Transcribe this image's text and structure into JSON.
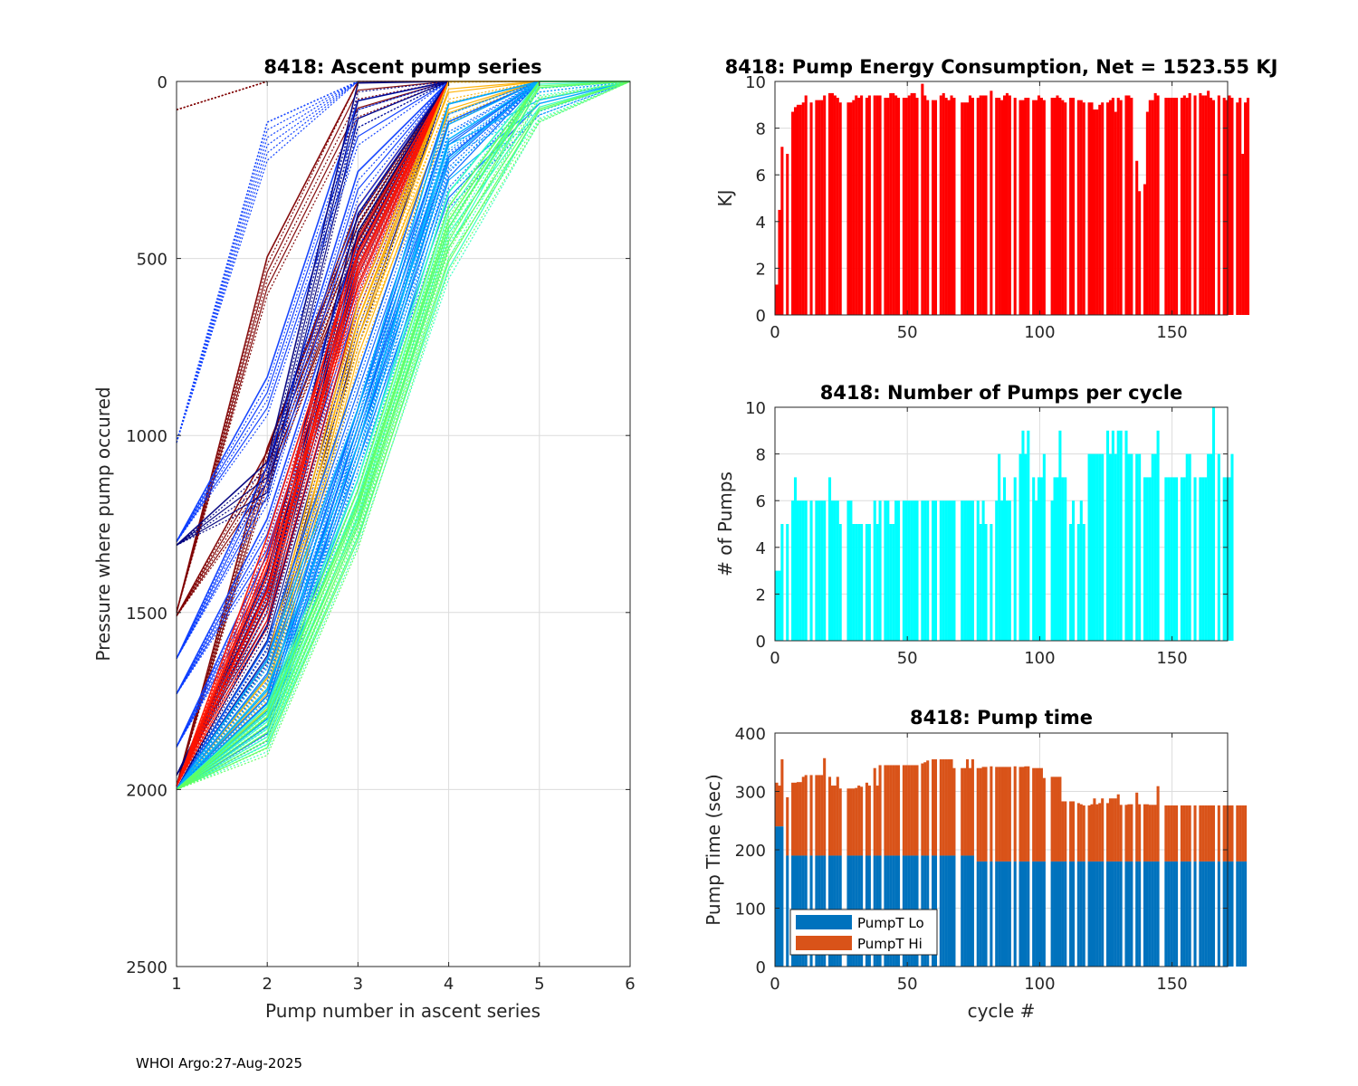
{
  "footer": "WHOI Argo:27-Aug-2025",
  "chart_data": [
    {
      "id": "ascent",
      "type": "line",
      "title": "8418: Ascent pump series",
      "xlabel": "Pump number in ascent series",
      "ylabel": "Pressure where pump occured",
      "xlim": [
        1,
        6
      ],
      "ylim": [
        0,
        2500
      ],
      "y_reversed": true,
      "grid": true,
      "xticks": [
        "1",
        "2",
        "3",
        "4",
        "5",
        "6"
      ],
      "yticks": [
        "0",
        "500",
        "1000",
        "1500",
        "2000",
        "2500"
      ],
      "colormap": "jet (by cycle number)",
      "series_groups": [
        {
          "name": "early-cycles-dark-red",
          "color": "#800000",
          "lines": [
            [
              80,
              0
            ],
            [
              1510,
              1110,
              430,
              0
            ],
            [
              1500,
              560,
              50,
              0
            ],
            [
              1990,
              1100,
              460,
              0
            ]
          ]
        },
        {
          "name": "early-blue",
          "color": "#0a3cff",
          "lines": [
            [
              1020,
              180,
              0
            ],
            [
              1300,
              900,
              130,
              0
            ],
            [
              1630,
              1150,
              330,
              0
            ],
            [
              1730,
              1300,
              520,
              0
            ],
            [
              1880,
              1400,
              600,
              0
            ]
          ]
        },
        {
          "name": "navy",
          "color": "#00007f",
          "lines": [
            [
              1310,
              1140,
              80,
              0
            ],
            [
              1960,
              1500,
              500,
              0
            ],
            [
              1990,
              1450,
              450,
              0
            ],
            [
              2000,
              1600,
              700,
              0
            ]
          ]
        },
        {
          "name": "red-cycles",
          "color": "#ff1400",
          "lines": [
            [
              1990,
              1420,
              520,
              0
            ],
            [
              1990,
              1350,
              560,
              0
            ],
            [
              1990,
              1500,
              600,
              0
            ]
          ]
        },
        {
          "name": "orange-yellow",
          "color": "#ffb000",
          "lines": [
            [
              2000,
              1700,
              700,
              60,
              0
            ],
            [
              2000,
              1750,
              750,
              50,
              0
            ]
          ]
        },
        {
          "name": "mid-blue",
          "color": "#0060ff",
          "lines": [
            [
              2000,
              1800,
              1000,
              200,
              0,
              0
            ],
            [
              2000,
              1820,
              1050,
              300,
              30,
              0
            ],
            [
              2000,
              1650,
              900,
              150,
              0,
              0
            ]
          ]
        },
        {
          "name": "light-blue",
          "color": "#00b0ff",
          "lines": [
            [
              2000,
              1780,
              1100,
              250,
              30,
              0
            ],
            [
              2000,
              1700,
              1000,
              150,
              20,
              0
            ]
          ]
        },
        {
          "name": "cyan-green",
          "color": "#30ffc0",
          "lines": [
            [
              2000,
              1830,
              1200,
              400,
              40,
              0
            ],
            [
              2000,
              1850,
              1260,
              500,
              50,
              0
            ]
          ]
        },
        {
          "name": "green",
          "color": "#60ff60",
          "lines": [
            [
              2000,
              1860,
              1270,
              480,
              50,
              0
            ],
            [
              2000,
              1840,
              1230,
              440,
              45,
              0
            ]
          ]
        }
      ]
    },
    {
      "id": "energy",
      "type": "bar",
      "title": "8418: Pump Energy Consumption,  Net = 1523.55 KJ",
      "xlabel": "",
      "ylabel": "KJ",
      "xlim": [
        0,
        171
      ],
      "ylim": [
        0,
        10
      ],
      "grid": true,
      "xticks": [
        "0",
        "50",
        "100",
        "150"
      ],
      "yticks": [
        "0",
        "2",
        "4",
        "6",
        "8",
        "10"
      ],
      "color": "#ff0000",
      "values": [
        1.3,
        4.5,
        7.2,
        6.9,
        6.9,
        6.9,
        8.7,
        8.9,
        9.0,
        9.0,
        9.1,
        9.4,
        9.3,
        9.1,
        9.3,
        9.2,
        9.2,
        9.2,
        9.4,
        9.5,
        9.5,
        9.5,
        9.4,
        9.3,
        9.1,
        9.3,
        9.1,
        9.1,
        9.1,
        9.2,
        9.4,
        9.3,
        9.4,
        9.2,
        9.3,
        9.4,
        9.2,
        9.4,
        9.4,
        9.4,
        9.3,
        9.3,
        9.3,
        9.5,
        9.5,
        9.4,
        9.3,
        9.3,
        9.3,
        9.3,
        9.4,
        9.5,
        9.5,
        9.3,
        9.5,
        9.9,
        9.4,
        9.2,
        9.3,
        9.2,
        9.2,
        9.4,
        9.4,
        9.5,
        9.3,
        9.2,
        9.4,
        9.3,
        9.2,
        9.2,
        9.1,
        9.1,
        9.1,
        9.4,
        9.3,
        9.3,
        9.3,
        9.4,
        9.4,
        9.4,
        9.2,
        9.6,
        9.4,
        9.3,
        9.3,
        9.2,
        9.4,
        9.5,
        9.4,
        9.3,
        9.3,
        9.3,
        9.2,
        9.2,
        9.3,
        9.3,
        9.2,
        9.2,
        9.2,
        9.4,
        9.3,
        9.2,
        9.1,
        9.2,
        9.3,
        9.3,
        9.4,
        9.3,
        9.2,
        9.1,
        9.1,
        9.3,
        9.3,
        9.2,
        9.2,
        9.2,
        9.1,
        9.1,
        9.1,
        9.1,
        8.8,
        8.8,
        9.0,
        9.1,
        9.2,
        9.1,
        9.2,
        9.3,
        8.7,
        9.3,
        9.2,
        9.0,
        9.4,
        9.4,
        9.3,
        9.3,
        6.6,
        5.3,
        4.6,
        5.6,
        8.7,
        9.2,
        9.2,
        9.5,
        9.4,
        9.4,
        9.5,
        9.3,
        9.3,
        9.3,
        9.3,
        9.3,
        9.3,
        9.3,
        9.4,
        9.3,
        9.5,
        9.3,
        9.4,
        9.5,
        9.5,
        9.4,
        9.4,
        9.6,
        9.3,
        9.2,
        9.3,
        9.4,
        9.5,
        9.3,
        9.2,
        9.4,
        9.3,
        9.3,
        9.1,
        9.3,
        6.9,
        9.1,
        9.3
      ],
      "gaps_after_cycles": "numerous missing bars (white gaps) throughout"
    },
    {
      "id": "pumps",
      "type": "bar",
      "title": "8418: Number of Pumps per cycle",
      "xlabel": "",
      "ylabel": "# of Pumps",
      "xlim": [
        0,
        171
      ],
      "ylim": [
        0,
        10
      ],
      "grid": true,
      "xticks": [
        "0",
        "50",
        "100",
        "150"
      ],
      "yticks": [
        "0",
        "2",
        "4",
        "6",
        "8",
        "10"
      ],
      "color": "#00ffff",
      "values": [
        3,
        3,
        5,
        5,
        5,
        5,
        6,
        7,
        6,
        6,
        6,
        6,
        6,
        6,
        6,
        6,
        6,
        6,
        6,
        6,
        7,
        6,
        6,
        6,
        5,
        6,
        5,
        6,
        6,
        5,
        5,
        5,
        5,
        5,
        5,
        5,
        6,
        6,
        5,
        6,
        6,
        6,
        6,
        5,
        5,
        6,
        6,
        6,
        6,
        6,
        6,
        6,
        6,
        6,
        6,
        6,
        6,
        6,
        6,
        6,
        6,
        6,
        6,
        6,
        6,
        6,
        6,
        6,
        6,
        6,
        6,
        6,
        6,
        6,
        6,
        6,
        6,
        5,
        6,
        5,
        5,
        5,
        6,
        6,
        8,
        6,
        7,
        6,
        6,
        7,
        7,
        8,
        8,
        9,
        8,
        9,
        7,
        7,
        6,
        7,
        7,
        8,
        7,
        7,
        6,
        7,
        7,
        9,
        7,
        7,
        6,
        5,
        6,
        5,
        5,
        6,
        5,
        5,
        8,
        8,
        8,
        8,
        8,
        8,
        8,
        9,
        8,
        9,
        8,
        9,
        9,
        9,
        9,
        8,
        8,
        8,
        8,
        8,
        7,
        7,
        7,
        7,
        8,
        8,
        9,
        8,
        9,
        7,
        7,
        7,
        7,
        7,
        7,
        7,
        7,
        8,
        8,
        8,
        7,
        7,
        7,
        7,
        7,
        8,
        8,
        10,
        8,
        8,
        7,
        7,
        7,
        7,
        8,
        7
      ],
      "gaps_after_cycles": "numerous missing bars (white gaps) throughout"
    },
    {
      "id": "pumptime",
      "type": "bar",
      "stacked": true,
      "title": "8418: Pump time",
      "xlabel": "cycle #",
      "ylabel": "Pump Time (sec)",
      "xlim": [
        0,
        171
      ],
      "ylim": [
        0,
        400
      ],
      "grid": true,
      "xticks": [
        "0",
        "50",
        "100",
        "150"
      ],
      "yticks": [
        "0",
        "100",
        "200",
        "300",
        "400"
      ],
      "legend": {
        "placement": "bottom-left",
        "entries": [
          "PumpT Lo",
          "PumpT Hi"
        ]
      },
      "series": [
        {
          "name": "PumpT Lo",
          "color": "#0072bd",
          "values_description": "≈240 for cycles 0-2, ≈190 for cycles 3-74, ≈180 for cycles 75-171"
        },
        {
          "name": "PumpT Hi",
          "color": "#d95319",
          "values_description": "top (Lo+Hi) totals listed in totals"
        }
      ],
      "lo_breaks": [
        [
          0,
          2,
          240
        ],
        [
          3,
          74,
          190
        ],
        [
          75,
          171,
          180
        ]
      ],
      "totals": [
        315,
        310,
        355,
        290,
        290,
        290,
        315,
        315,
        316,
        316,
        325,
        328,
        328,
        328,
        328,
        328,
        328,
        328,
        357,
        325,
        325,
        310,
        310,
        325,
        305,
        335,
        305,
        305,
        305,
        305,
        306,
        310,
        308,
        305,
        315,
        310,
        340,
        340,
        310,
        345,
        345,
        345,
        345,
        345,
        345,
        345,
        345,
        345,
        345,
        345,
        345,
        345,
        345,
        345,
        345,
        348,
        350,
        353,
        355,
        355,
        355,
        355,
        355,
        355,
        355,
        355,
        355,
        340,
        340,
        340,
        340,
        340,
        355,
        340,
        355,
        340,
        340,
        340,
        342,
        342,
        343,
        343,
        342,
        342,
        342,
        342,
        342,
        342,
        342,
        342,
        343,
        343,
        342,
        342,
        343,
        343,
        342,
        340,
        340,
        340,
        340,
        323,
        323,
        323,
        325,
        325,
        325,
        325,
        283,
        283,
        283,
        283,
        283,
        285,
        280,
        278,
        276,
        290,
        276,
        278,
        288,
        278,
        280,
        288,
        288,
        280,
        288,
        288,
        288,
        295,
        277,
        277,
        277,
        278,
        278,
        278,
        298,
        278,
        256,
        278,
        278,
        277,
        277,
        277,
        309,
        276,
        276,
        276,
        276,
        276,
        276,
        276,
        276,
        276,
        276,
        276,
        276,
        276,
        276,
        276,
        276,
        276,
        276,
        276,
        276,
        276,
        276,
        276,
        276,
        276,
        276,
        276,
        276,
        276,
        276,
        276,
        276,
        276
      ]
    }
  ]
}
